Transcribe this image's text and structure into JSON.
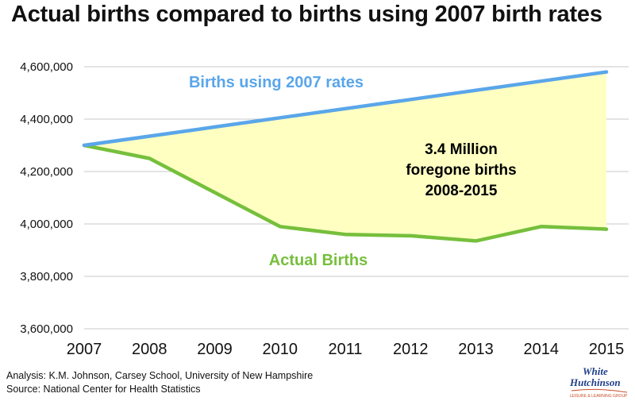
{
  "title": "Actual births compared to births using 2007 birth rates",
  "footer": {
    "analysis": "Analysis: K.M. Johnson, Carsey School, University of New Hampshire",
    "source": "Source: National Center for Health Statistics"
  },
  "logo": {
    "line1": "White",
    "line2": "Hutchinson",
    "tagline": "LEISURE & LEARNING GROUP"
  },
  "colors": {
    "projected": "#5aa6ea",
    "actual": "#76bf3c",
    "gap_fill": "#ffffc2",
    "grid": "#c8c8c8"
  },
  "chart_data": {
    "type": "line",
    "x": [
      "2007",
      "2008",
      "2009",
      "2010",
      "2011",
      "2012",
      "2013",
      "2014",
      "2015"
    ],
    "series": [
      {
        "name": "Births using 2007 rates",
        "values": [
          4300000,
          4335000,
          4370000,
          4405000,
          4440000,
          4475000,
          4510000,
          4545000,
          4580000
        ]
      },
      {
        "name": "Actual Births",
        "values": [
          4300000,
          4250000,
          4120000,
          3990000,
          3960000,
          3955000,
          3935000,
          3990000,
          3980000
        ]
      }
    ],
    "ylim": [
      3600000,
      4600000
    ],
    "yticks": [
      4600000,
      4400000,
      4200000,
      4000000,
      3800000,
      3600000
    ],
    "ytick_labels": [
      "4,600,000",
      "4,400,000",
      "4,200,000",
      "4,000,000",
      "3,800,000",
      "3,600,000"
    ],
    "annotation": [
      "3.4 Million",
      "foregone births",
      "2008-2015"
    ],
    "grid": true,
    "legend": "inline labels"
  }
}
